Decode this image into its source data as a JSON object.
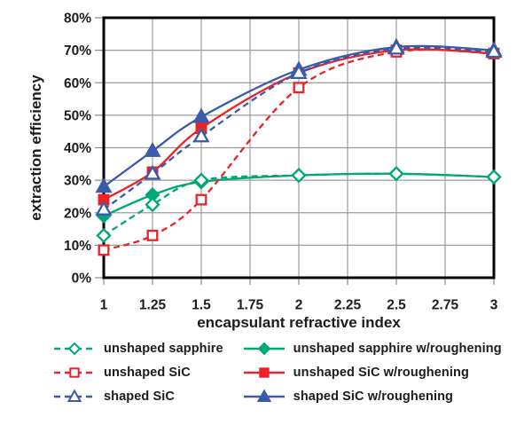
{
  "figure": {
    "background": "#ffffff"
  },
  "chart_data": {
    "type": "line",
    "title": "",
    "xlabel": "encapsulant refractive index",
    "ylabel": "extraction efficiency",
    "xlim": [
      1,
      3
    ],
    "ylim": [
      0,
      80
    ],
    "grid": true,
    "legend_position": "bottom",
    "x_ticks": [
      1,
      1.25,
      1.5,
      1.75,
      2,
      2.25,
      2.5,
      2.75,
      3
    ],
    "x_tick_labels": [
      "1",
      "1.25",
      "1.5",
      "1.75",
      "2",
      "2.25",
      "2.5",
      "2.75",
      "3"
    ],
    "y_ticks": [
      0,
      10,
      20,
      30,
      40,
      50,
      60,
      70,
      80
    ],
    "y_tick_labels": [
      "0%",
      "10%",
      "20%",
      "30%",
      "40%",
      "50%",
      "60%",
      "70%",
      "80%"
    ],
    "x": [
      1,
      1.25,
      1.5,
      2,
      2.5,
      3
    ],
    "series": [
      {
        "name": "unshaped sapphire",
        "color": "#00A878",
        "line": "dashed",
        "marker": "diamond",
        "fill": "open",
        "values": [
          13,
          22.5,
          30,
          31.5,
          32,
          31
        ]
      },
      {
        "name": "unshaped SiC",
        "color": "#EB2227",
        "line": "dashed",
        "marker": "square",
        "fill": "open",
        "values": [
          8.5,
          13,
          24,
          58.5,
          69.5,
          69
        ]
      },
      {
        "name": "shaped SiC",
        "color": "#3A5BA9",
        "line": "dashed",
        "marker": "triangle",
        "fill": "open",
        "values": [
          21,
          32,
          43.5,
          63,
          70.5,
          69.5
        ]
      },
      {
        "name": "unshaped sapphire w/roughening",
        "color": "#00A878",
        "line": "solid",
        "marker": "diamond",
        "fill": "filled",
        "values": [
          19,
          25.5,
          29.5,
          31.5,
          32,
          31
        ]
      },
      {
        "name": "unshaped SiC w/roughening",
        "color": "#EB2227",
        "line": "solid",
        "marker": "square",
        "fill": "filled",
        "values": [
          24,
          32.5,
          46,
          63,
          70,
          69
        ]
      },
      {
        "name": "shaped SiC w/roughening",
        "color": "#3A5BA9",
        "line": "solid",
        "marker": "triangle",
        "fill": "filled",
        "values": [
          28,
          39,
          49.5,
          64,
          71,
          70
        ]
      }
    ],
    "draw_order": [
      3,
      0,
      4,
      1,
      5,
      2
    ],
    "colors": {
      "grid": "#9c9c9c",
      "axis": "#000000",
      "tick": "#8a8a8a",
      "text": "#1c1c1c",
      "plot_background": "#ffffff"
    }
  }
}
